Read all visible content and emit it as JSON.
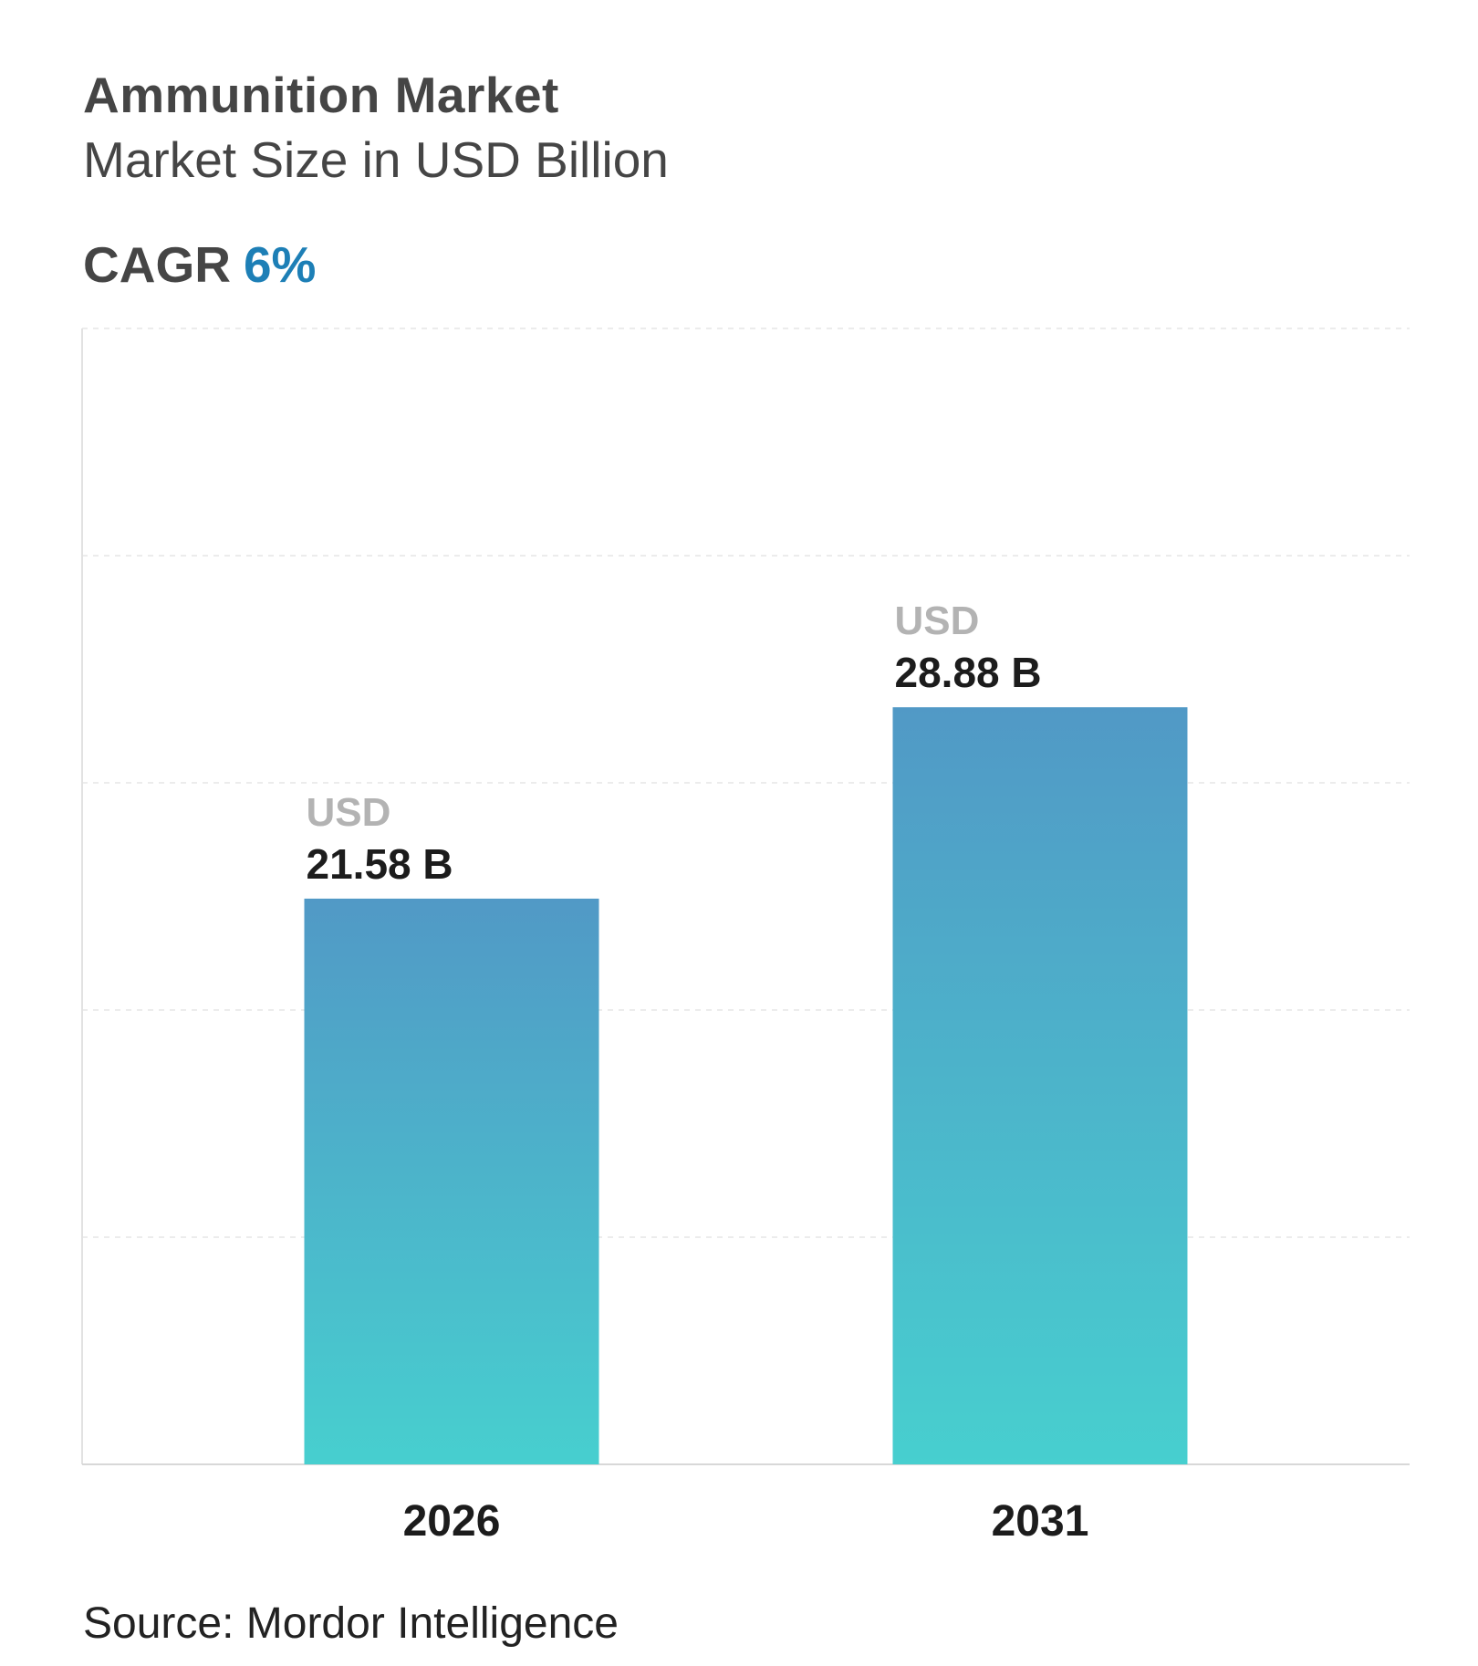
{
  "header": {
    "title": "Ammunition Market",
    "subtitle": "Market Size in USD Billion",
    "cagr_label": "CAGR",
    "cagr_value": "6%"
  },
  "source": "Source: Mordor Intelligence",
  "colors": {
    "bar_top": "#5199c6",
    "bar_bottom": "#47cfcf",
    "cagr_accent": "#1d7fb6",
    "gridline": "#e6e6e6"
  },
  "chart_data": {
    "type": "bar",
    "categories": [
      "2026",
      "2031"
    ],
    "values": [
      21.58,
      28.88
    ],
    "value_labels": [
      {
        "unit": "USD",
        "value": "21.58 B"
      },
      {
        "unit": "USD",
        "value": "28.88 B"
      }
    ],
    "title": "Ammunition Market",
    "subtitle": "Market Size in USD Billion",
    "xlabel": "",
    "ylabel": "",
    "ylim": [
      0,
      43.33
    ],
    "grid": true
  }
}
